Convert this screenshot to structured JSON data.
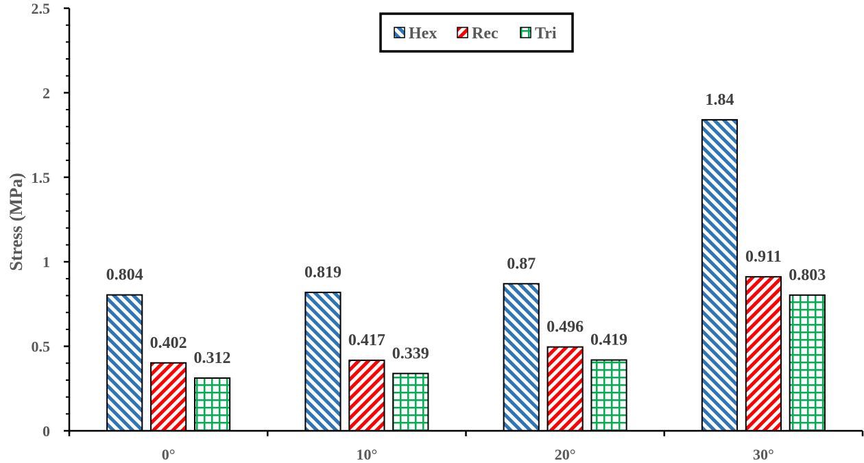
{
  "chart_data": {
    "type": "bar",
    "categories": [
      "0°",
      "10°",
      "20°",
      "30°"
    ],
    "series": [
      {
        "name": "Hex",
        "values": [
          0.804,
          0.819,
          0.87,
          1.84
        ],
        "labels": [
          "0.804",
          "0.819",
          "0.87",
          "1.84"
        ],
        "color": "#2e75b6",
        "pattern": "diagonal-down"
      },
      {
        "name": "Rec",
        "values": [
          0.402,
          0.417,
          0.496,
          0.911
        ],
        "labels": [
          "0.402",
          "0.417",
          "0.496",
          "0.911"
        ],
        "color": "#ff0000",
        "pattern": "diagonal-up"
      },
      {
        "name": "Tri",
        "values": [
          0.312,
          0.339,
          0.419,
          0.803
        ],
        "labels": [
          "0.312",
          "0.339",
          "0.419",
          "0.803"
        ],
        "color": "#00b050",
        "pattern": "grid"
      }
    ],
    "title": "",
    "xlabel": "",
    "ylabel": "Stress (MPa)",
    "ylim": [
      0,
      2.5
    ],
    "yticks": [
      0,
      0.5,
      1,
      1.5,
      2,
      2.5
    ],
    "ytick_labels": [
      "0",
      "0.5",
      "1",
      "1.5",
      "2",
      "2.5"
    ],
    "grid": false,
    "legend": "top-center"
  }
}
